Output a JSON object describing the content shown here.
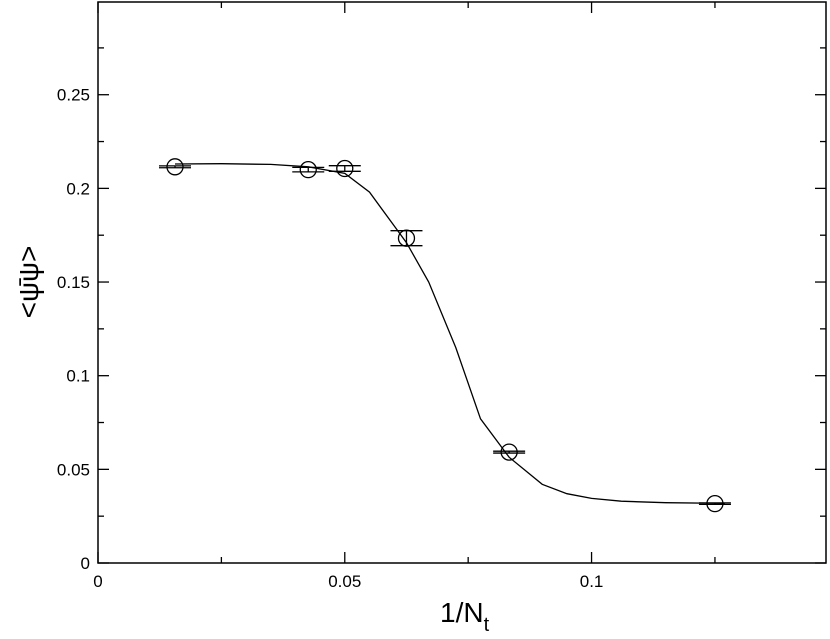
{
  "chart_data": {
    "type": "scatter",
    "xlabel": "1/N",
    "xlabel_sub": "t",
    "ylabel": "<ψ̄ψ>",
    "xlim": [
      0,
      0.1475
    ],
    "ylim": [
      0,
      0.2995
    ],
    "x_ticks": [
      {
        "value": 0,
        "label": "0"
      },
      {
        "value": 0.05,
        "label": "0.05"
      },
      {
        "value": 0.1,
        "label": "0.1"
      }
    ],
    "y_ticks": [
      {
        "value": 0,
        "label": "0"
      },
      {
        "value": 0.05,
        "label": "0.05"
      },
      {
        "value": 0.1,
        "label": "0.1"
      },
      {
        "value": 0.15,
        "label": "0.15"
      },
      {
        "value": 0.2,
        "label": "0.2"
      },
      {
        "value": 0.25,
        "label": "0.25"
      }
    ],
    "x_minor_step": 0.025,
    "y_minor_step": 0.025,
    "series": [
      {
        "marker": "open-circle",
        "points": [
          {
            "x": 0.0156,
            "y": 0.2115,
            "yerr": 0.0005
          },
          {
            "x": 0.0426,
            "y": 0.21,
            "yerr": 0.0012
          },
          {
            "x": 0.05,
            "y": 0.2106,
            "yerr": 0.0015
          },
          {
            "x": 0.0625,
            "y": 0.1734,
            "yerr": 0.004
          },
          {
            "x": 0.0833,
            "y": 0.0592,
            "yerr": 0.0005
          },
          {
            "x": 0.125,
            "y": 0.0317,
            "yerr": 0.0004
          }
        ]
      },
      {
        "type": "line",
        "points": [
          {
            "x": 0.0156,
            "y": 0.213
          },
          {
            "x": 0.025,
            "y": 0.2132
          },
          {
            "x": 0.035,
            "y": 0.2128
          },
          {
            "x": 0.0426,
            "y": 0.2115
          },
          {
            "x": 0.05,
            "y": 0.208
          },
          {
            "x": 0.055,
            "y": 0.198
          },
          {
            "x": 0.06,
            "y": 0.18
          },
          {
            "x": 0.0625,
            "y": 0.171
          },
          {
            "x": 0.067,
            "y": 0.15
          },
          {
            "x": 0.0725,
            "y": 0.115
          },
          {
            "x": 0.0775,
            "y": 0.077
          },
          {
            "x": 0.0833,
            "y": 0.0565
          },
          {
            "x": 0.09,
            "y": 0.042
          },
          {
            "x": 0.095,
            "y": 0.037
          },
          {
            "x": 0.1,
            "y": 0.0345
          },
          {
            "x": 0.106,
            "y": 0.033
          },
          {
            "x": 0.115,
            "y": 0.0322
          },
          {
            "x": 0.127,
            "y": 0.0318
          }
        ]
      }
    ]
  }
}
